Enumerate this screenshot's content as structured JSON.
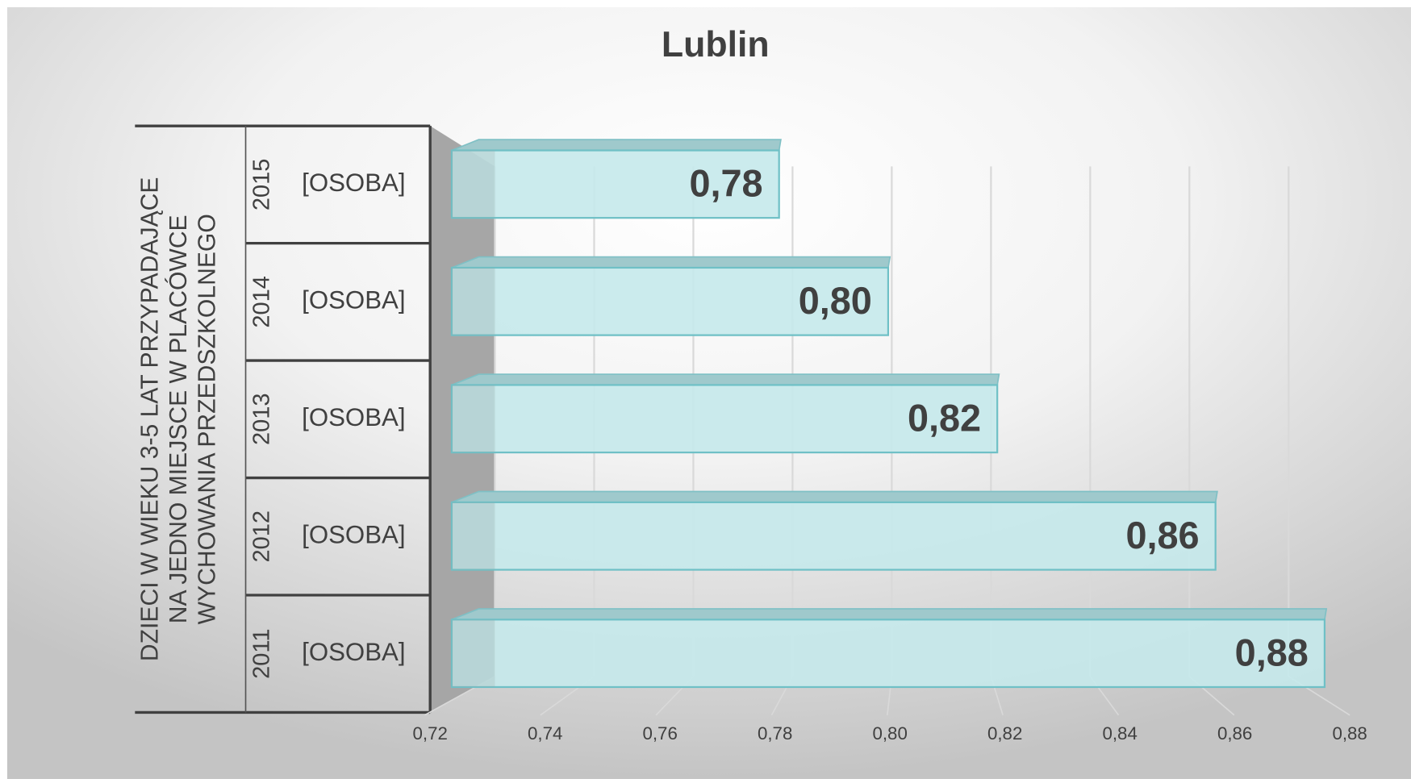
{
  "chart_data": {
    "type": "bar3d_horizontal",
    "title": "Lublin",
    "group_label": [
      "DZIECI W WIEKU 3-5 LAT PRZYPADAJĄCE",
      "NA JEDNO MIEJSCE W PLACÓWCE",
      "WYCHOWANIA PRZEDSZKOLNEGO"
    ],
    "categories": [
      "2015",
      "2014",
      "2013",
      "2012",
      "2011"
    ],
    "subcategories": [
      "[OSOBA]",
      "[OSOBA]",
      "[OSOBA]",
      "[OSOBA]",
      "[OSOBA]"
    ],
    "values": [
      0.78,
      0.8,
      0.82,
      0.86,
      0.88
    ],
    "value_labels": [
      "0,78",
      "0,80",
      "0,82",
      "0,86",
      "0,88"
    ],
    "color": "#c5e9eb",
    "xlim": [
      0.72,
      0.88
    ],
    "xticks": [
      {
        "value": 0.72,
        "label": "0,72"
      },
      {
        "value": 0.74,
        "label": "0,74"
      },
      {
        "value": 0.76,
        "label": "0,76"
      },
      {
        "value": 0.78,
        "label": "0,78"
      },
      {
        "value": 0.8,
        "label": "0,80"
      },
      {
        "value": 0.82,
        "label": "0,82"
      },
      {
        "value": 0.84,
        "label": "0,84"
      },
      {
        "value": 0.86,
        "label": "0,86"
      },
      {
        "value": 0.88,
        "label": "0,88"
      }
    ],
    "grid": true
  }
}
